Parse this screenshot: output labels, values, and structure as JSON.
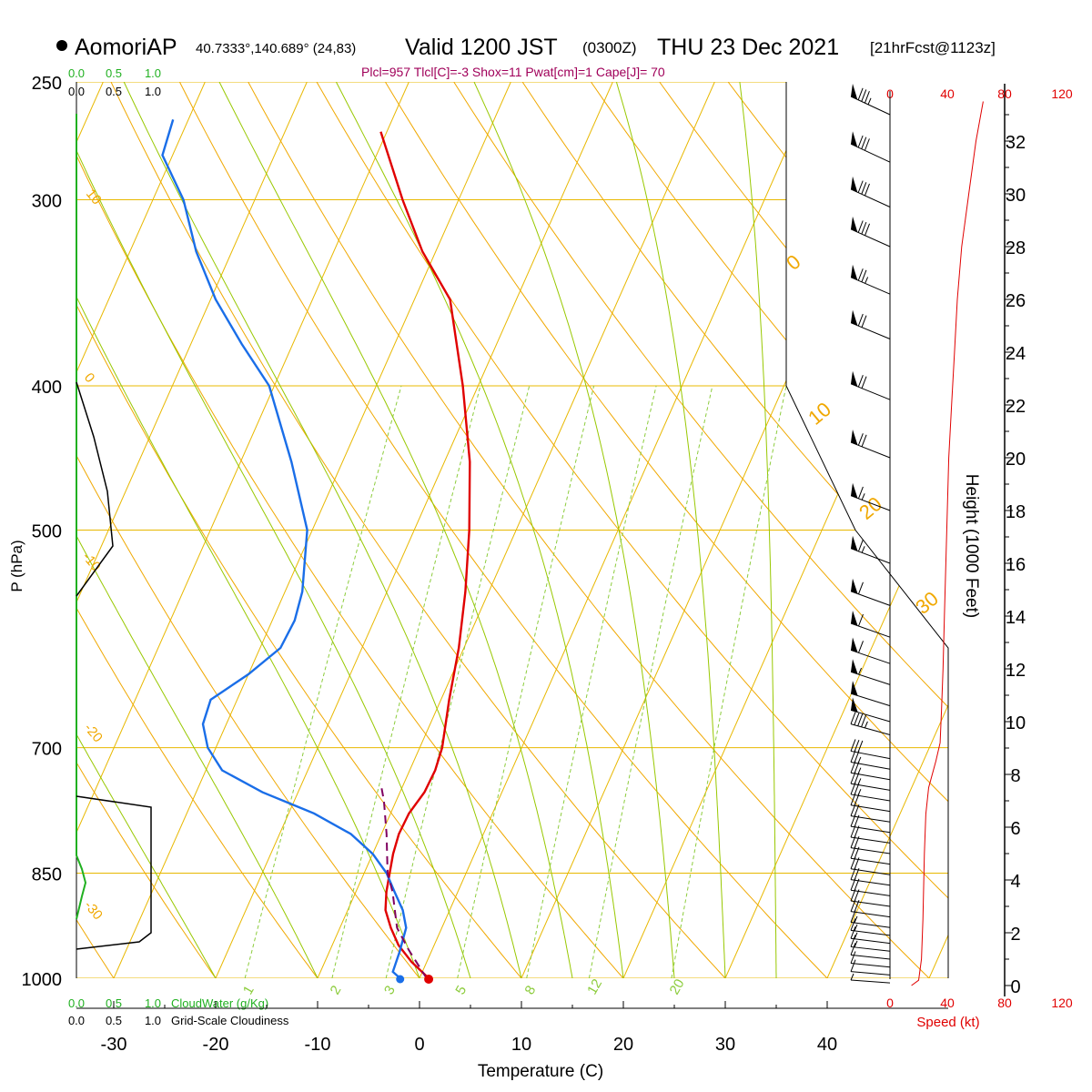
{
  "header": {
    "station": "AomoriAP",
    "coords": "40.7333°,140.689° (24,83)",
    "valid_prefix": "Valid 1200 JST",
    "valid_utc": "(0300Z)",
    "valid_date": "THU 23 Dec 2021",
    "fcst": "[21hrFcst@1123z]",
    "indices": "Plcl=957 Tlcl[C]=-3 Shox=11 Pwat[cm]=1 Cape[J]= 70"
  },
  "colors": {
    "isotherm": "#e8b800",
    "dry_adiabat": "#f0a800",
    "moist_adiabat": "#98c800",
    "mixing_ratio": "#8ccc3c",
    "temperature": "#e00000",
    "dewpoint": "#1a6ee8",
    "parcel": "#800060",
    "cloudwater": "#20b020",
    "cloudiness": "#000000",
    "wind_speed": "#e00000",
    "indices_text": "#a0005a"
  },
  "chart_data": {
    "type": "line",
    "title": "",
    "xlabel": "Temperature (C)",
    "ylabel": "P (hPa)",
    "y2label": "Height (1000 Feet)",
    "xlim": [
      -35,
      40
    ],
    "ylim": [
      1000,
      250
    ],
    "x_ticks": [
      -30,
      -20,
      -10,
      0,
      10,
      20,
      30,
      40
    ],
    "p_ticks": [
      250,
      300,
      400,
      500,
      700,
      850,
      1000
    ],
    "height_ticks": [
      0,
      2,
      4,
      6,
      8,
      10,
      12,
      14,
      16,
      18,
      20,
      22,
      24,
      26,
      28,
      30,
      32
    ],
    "dry_adiabat_labels": [
      {
        "text": "10",
        "p": 300
      },
      {
        "text": "0",
        "p": 400
      },
      {
        "text": "-10",
        "p": 525
      },
      {
        "text": "-20",
        "p": 700
      },
      {
        "text": "-30",
        "p": 900
      }
    ],
    "right_labels": [
      {
        "text": "0",
        "p": 345
      },
      {
        "text": "10",
        "p": 440
      },
      {
        "text": "20",
        "p": 530
      },
      {
        "text": "30",
        "p": 620
      }
    ],
    "mixing_ratio_labels": [
      "1",
      "2",
      "3",
      "5",
      "8",
      "12",
      "20"
    ],
    "series": [
      {
        "name": "Temperature",
        "points": [
          [
            0.9,
            1000
          ],
          [
            -1.5,
            975
          ],
          [
            -3.5,
            950
          ],
          [
            -5,
            925
          ],
          [
            -6.3,
            900
          ],
          [
            -7,
            875
          ],
          [
            -7.5,
            850
          ],
          [
            -8,
            825
          ],
          [
            -8.3,
            800
          ],
          [
            -8.2,
            775
          ],
          [
            -7.6,
            750
          ],
          [
            -7.5,
            725
          ],
          [
            -7.8,
            700
          ],
          [
            -9.2,
            650
          ],
          [
            -10.5,
            600
          ],
          [
            -12.3,
            550
          ],
          [
            -14.6,
            500
          ],
          [
            -17.5,
            450
          ],
          [
            -21.5,
            400
          ],
          [
            -26.5,
            350
          ],
          [
            -31.3,
            325
          ],
          [
            -35.5,
            300
          ],
          [
            -40.6,
            270
          ]
        ]
      },
      {
        "name": "Dewpoint",
        "points": [
          [
            -1.9,
            1000
          ],
          [
            -2.9,
            990
          ],
          [
            -3.1,
            960
          ],
          [
            -3.5,
            925
          ],
          [
            -4.6,
            900
          ],
          [
            -6.2,
            875
          ],
          [
            -7.8,
            850
          ],
          [
            -10,
            825
          ],
          [
            -13,
            800
          ],
          [
            -17.5,
            775
          ],
          [
            -23.5,
            750
          ],
          [
            -28.4,
            725
          ],
          [
            -30.8,
            700
          ],
          [
            -32.3,
            675
          ],
          [
            -32.6,
            650
          ],
          [
            -30,
            625
          ],
          [
            -28,
            600
          ],
          [
            -27.8,
            575
          ],
          [
            -28.3,
            550
          ],
          [
            -30.5,
            500
          ],
          [
            -35,
            450
          ],
          [
            -40.5,
            400
          ],
          [
            -45,
            375
          ],
          [
            -49.5,
            350
          ],
          [
            -53.5,
            325
          ],
          [
            -57,
            300
          ],
          [
            -61,
            280
          ],
          [
            -61.5,
            265
          ]
        ]
      },
      {
        "name": "Parcel",
        "points": [
          [
            0.7,
            1000
          ],
          [
            -2.3,
            957
          ],
          [
            -4.4,
            925
          ],
          [
            -6.4,
            875
          ],
          [
            -7.7,
            850
          ],
          [
            -9.5,
            800
          ],
          [
            -11.2,
            760
          ],
          [
            -12,
            745
          ]
        ]
      }
    ],
    "cloudwater": {
      "label": "CloudWater (g/Kg)",
      "ticks": [
        "0.0",
        "0.5",
        "1.0"
      ]
    },
    "cloudiness": {
      "label": "Grid-Scale Cloudiness",
      "ticks": [
        "0.0",
        "0.5",
        "1.0"
      ]
    },
    "wind": {
      "label": "Speed (kt)",
      "speed_ticks": [
        0,
        40,
        80,
        120
      ],
      "barbs": [
        {
          "h": 0.1,
          "spd": 5
        },
        {
          "h": 0.4,
          "spd": 8
        },
        {
          "h": 0.7,
          "spd": 10
        },
        {
          "h": 1.0,
          "spd": 12
        },
        {
          "h": 1.3,
          "spd": 13
        },
        {
          "h": 1.6,
          "spd": 15
        },
        {
          "h": 1.9,
          "spd": 16
        },
        {
          "h": 2.2,
          "spd": 17
        },
        {
          "h": 2.6,
          "spd": 18
        },
        {
          "h": 3.0,
          "spd": 18
        },
        {
          "h": 3.4,
          "spd": 19
        },
        {
          "h": 3.8,
          "spd": 19
        },
        {
          "h": 4.2,
          "spd": 20
        },
        {
          "h": 4.6,
          "spd": 20
        },
        {
          "h": 5.0,
          "spd": 20
        },
        {
          "h": 5.4,
          "spd": 20
        },
        {
          "h": 5.8,
          "spd": 21
        },
        {
          "h": 6.2,
          "spd": 21
        },
        {
          "h": 6.6,
          "spd": 22
        },
        {
          "h": 7.0,
          "spd": 23
        },
        {
          "h": 7.4,
          "spd": 24
        },
        {
          "h": 7.8,
          "spd": 25
        },
        {
          "h": 8.2,
          "spd": 26
        },
        {
          "h": 8.6,
          "spd": 28
        },
        {
          "h": 9.5,
          "spd": 45
        },
        {
          "h": 10.0,
          "spd": 48
        },
        {
          "h": 10.6,
          "spd": 52
        },
        {
          "h": 11.4,
          "spd": 55
        },
        {
          "h": 12.2,
          "spd": 58
        },
        {
          "h": 13.2,
          "spd": 60
        },
        {
          "h": 14.4,
          "spd": 62
        },
        {
          "h": 16.0,
          "spd": 65
        },
        {
          "h": 18.0,
          "spd": 65
        },
        {
          "h": 20.0,
          "spd": 68
        },
        {
          "h": 22.2,
          "spd": 70
        },
        {
          "h": 24.5,
          "spd": 72
        },
        {
          "h": 26.2,
          "spd": 75
        },
        {
          "h": 28.0,
          "spd": 78
        },
        {
          "h": 29.5,
          "spd": 80
        },
        {
          "h": 31.2,
          "spd": 82
        },
        {
          "h": 33.0,
          "spd": 85
        }
      ],
      "speed_profile": [
        [
          15,
          0
        ],
        [
          20,
          0.2
        ],
        [
          22,
          1.0
        ],
        [
          23,
          2.5
        ],
        [
          24,
          5.0
        ],
        [
          25,
          6.5
        ],
        [
          27,
          7.5
        ],
        [
          32,
          8.5
        ],
        [
          35,
          9.2
        ],
        [
          36,
          10.5
        ],
        [
          37,
          12
        ],
        [
          38,
          14
        ],
        [
          39,
          16
        ],
        [
          40,
          18
        ],
        [
          41,
          20
        ],
        [
          43,
          22
        ],
        [
          45,
          24
        ],
        [
          47,
          26
        ],
        [
          50,
          28
        ],
        [
          55,
          30
        ],
        [
          60,
          32
        ],
        [
          65,
          33.5
        ]
      ]
    }
  }
}
